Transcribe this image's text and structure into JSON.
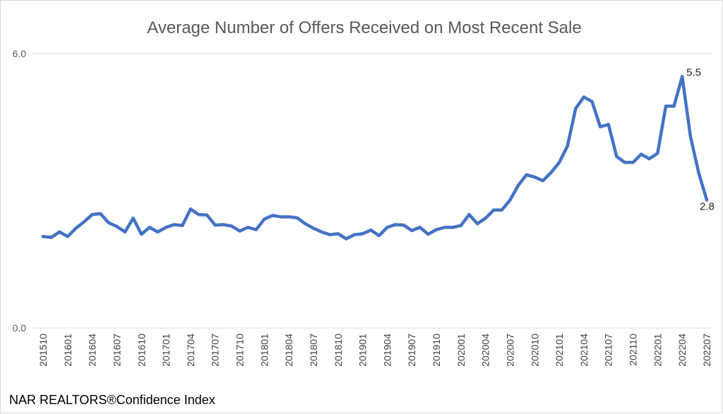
{
  "chart_data": {
    "type": "line",
    "title": "Average Number of Offers Received on Most Recent Sale",
    "source": "NAR REALTORS®Confidence Index",
    "xlabel": "",
    "ylabel": "",
    "ylim": [
      0,
      6
    ],
    "y_tick_labels": [
      "0.0",
      "6.0"
    ],
    "grid": true,
    "legend": "none",
    "line_color": "#4472C4",
    "x_tick_labels": [
      "201510",
      "201601",
      "201604",
      "201607",
      "201610",
      "201701",
      "201704",
      "201707",
      "201710",
      "201801",
      "201804",
      "201807",
      "201810",
      "201901",
      "201904",
      "201907",
      "201910",
      "202001",
      "202004",
      "202007",
      "202010",
      "202101",
      "202104",
      "202107",
      "202110",
      "202201",
      "202204",
      "202207"
    ],
    "x": [
      "201510",
      "201511",
      "201512",
      "201601",
      "201602",
      "201603",
      "201604",
      "201605",
      "201606",
      "201607",
      "201608",
      "201609",
      "201610",
      "201611",
      "201612",
      "201701",
      "201702",
      "201703",
      "201704",
      "201705",
      "201706",
      "201707",
      "201708",
      "201709",
      "201710",
      "201711",
      "201712",
      "201801",
      "201802",
      "201803",
      "201804",
      "201805",
      "201806",
      "201807",
      "201808",
      "201809",
      "201810",
      "201811",
      "201812",
      "201901",
      "201902",
      "201903",
      "201904",
      "201905",
      "201906",
      "201907",
      "201908",
      "201909",
      "201910",
      "201911",
      "201912",
      "202001",
      "202002",
      "202003",
      "202004",
      "202005",
      "202006",
      "202007",
      "202008",
      "202009",
      "202010",
      "202011",
      "202012",
      "202101",
      "202102",
      "202103",
      "202104",
      "202105",
      "202106",
      "202107",
      "202108",
      "202109",
      "202110",
      "202111",
      "202112",
      "202201",
      "202202",
      "202203",
      "202204",
      "202205",
      "202206",
      "202207"
    ],
    "values": [
      2.0,
      1.98,
      2.1,
      2.0,
      2.18,
      2.32,
      2.48,
      2.5,
      2.3,
      2.22,
      2.1,
      2.4,
      2.05,
      2.2,
      2.1,
      2.2,
      2.26,
      2.24,
      2.6,
      2.48,
      2.47,
      2.25,
      2.26,
      2.23,
      2.12,
      2.2,
      2.15,
      2.38,
      2.46,
      2.43,
      2.43,
      2.41,
      2.28,
      2.18,
      2.1,
      2.04,
      2.06,
      1.95,
      2.04,
      2.06,
      2.14,
      2.02,
      2.2,
      2.26,
      2.25,
      2.13,
      2.2,
      2.05,
      2.15,
      2.2,
      2.2,
      2.24,
      2.48,
      2.28,
      2.4,
      2.58,
      2.58,
      2.8,
      3.12,
      3.35,
      3.3,
      3.22,
      3.4,
      3.62,
      3.98,
      4.8,
      5.05,
      4.95,
      4.4,
      4.45,
      3.75,
      3.62,
      3.62,
      3.8,
      3.7,
      3.82,
      4.85,
      4.85,
      5.5,
      4.2,
      3.4,
      2.8
    ],
    "data_labels": [
      {
        "x": "202204",
        "text": "5.5"
      },
      {
        "x": "202207",
        "text": "2.8"
      }
    ]
  }
}
